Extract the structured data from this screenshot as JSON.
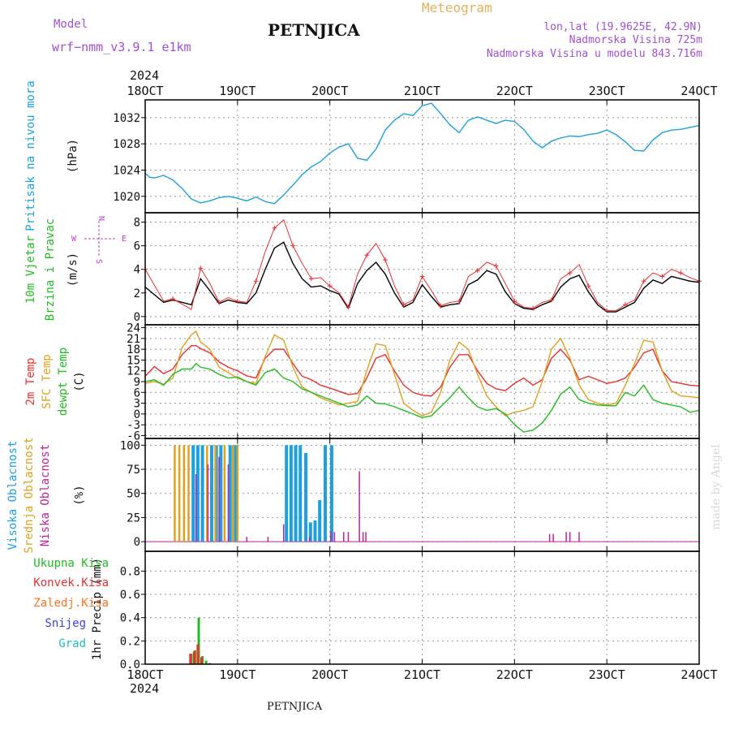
{
  "header": {
    "model_label": "Model",
    "model_name": "wrf−nmm_v3.9.1 e1km",
    "station": "PETNJICA",
    "title": "Meteogram",
    "lonlat": "lon,lat (19.9625E, 42.9N)",
    "elevation": "Nadmorska Visina 725m",
    "model_elevation": "Nadmorska Visina u modelu 843.716m",
    "year_top": "2024",
    "year_bottom": "2024",
    "footer_station": "PETNJICA",
    "credit": "made by Angel"
  },
  "colors": {
    "pressure": "#1ea0e0",
    "wind_label": "#22bb22",
    "wind_speed": "#000000",
    "wind_gust": "#e83030",
    "temp2m": "#e83030",
    "sfc_temp": "#e0a020",
    "dewpoint": "#22bb22",
    "high_cloud": "#1ea0e0",
    "mid_cloud": "#e0a020",
    "low_cloud": "#c020a0",
    "total_precip": "#22bb22",
    "conv_precip": "#e83030",
    "frozen_precip": "#ff7020",
    "snow": "#4040e0",
    "graupel": "#20c0c0",
    "compass": "#c040c0",
    "header_purple": "#a050d0",
    "header_orange": "#e0b060"
  },
  "chart_data": [
    {
      "type": "line",
      "panel": "pressure",
      "ylabel": "Pritisak na nivou mora",
      "units": "(hPa)",
      "x_ticks": [
        "18OCT",
        "19OCT",
        "20OCT",
        "21OCT",
        "22OCT",
        "23OCT",
        "24OCT"
      ],
      "yticks": [
        1020,
        1024,
        1028,
        1032
      ],
      "ylim": [
        1017.5,
        1034.7
      ],
      "grid": true,
      "series": [
        {
          "x": [
            0,
            0.05,
            0.1,
            0.2,
            0.3,
            0.4,
            0.5,
            0.6,
            0.7,
            0.8,
            0.9,
            1.0,
            1.1,
            1.2,
            1.3,
            1.4,
            1.5,
            1.6,
            1.7,
            1.8,
            1.9,
            2.0,
            2.1,
            2.2,
            2.3,
            2.4,
            2.5,
            2.6,
            2.7,
            2.8,
            2.9,
            3.0,
            3.1,
            3.2,
            3.3,
            3.4,
            3.5,
            3.6,
            3.7,
            3.8,
            3.9,
            4.0,
            4.1,
            4.2,
            4.3,
            4.4,
            4.5,
            4.6,
            4.7,
            4.8,
            4.9,
            5.0,
            5.1,
            5.2,
            5.3,
            5.4,
            5.5,
            5.6,
            5.7,
            5.8,
            5.9,
            6.0
          ],
          "values": [
            1023.5,
            1022.9,
            1022.8,
            1023.2,
            1022.5,
            1021.2,
            1019.6,
            1019.0,
            1019.3,
            1019.8,
            1020.0,
            1019.7,
            1019.3,
            1019.9,
            1019.2,
            1018.9,
            1020.2,
            1021.7,
            1023.3,
            1024.5,
            1025.3,
            1026.6,
            1027.5,
            1028.0,
            1025.8,
            1025.5,
            1027.2,
            1030.1,
            1031.6,
            1032.6,
            1032.3,
            1033.8,
            1034.2,
            1032.6,
            1030.9,
            1029.7,
            1031.6,
            1032.1,
            1031.6,
            1031.1,
            1031.6,
            1031.4,
            1030.2,
            1028.4,
            1027.4,
            1028.4,
            1028.9,
            1029.2,
            1029.1,
            1029.4,
            1029.6,
            1030.1,
            1029.4,
            1028.3,
            1027.0,
            1026.9,
            1028.6,
            1029.7,
            1030.1,
            1030.2,
            1030.5,
            1030.8
          ]
        }
      ]
    },
    {
      "type": "line",
      "panel": "wind",
      "ylabel": "10m Vjetar",
      "ylabel2": "Brzina i Pravac",
      "units": "(m/s)",
      "compass_top": "N",
      "compass_left": "W",
      "compass_right": "E",
      "compass_bottom": "S",
      "yticks": [
        0,
        2,
        4,
        6,
        8
      ],
      "ylim": [
        -0.7,
        8.8
      ],
      "grid": true,
      "series": [
        {
          "name": "speed",
          "x": [
            0,
            0.2,
            0.3,
            0.5,
            0.6,
            0.7,
            0.8,
            0.9,
            1.0,
            1.1,
            1.2,
            1.3,
            1.4,
            1.5,
            1.6,
            1.7,
            1.8,
            1.9,
            2.0,
            2.1,
            2.2,
            2.3,
            2.4,
            2.5,
            2.6,
            2.7,
            2.8,
            2.9,
            3.0,
            3.1,
            3.2,
            3.3,
            3.4,
            3.5,
            3.6,
            3.7,
            3.8,
            3.9,
            4.0,
            4.1,
            4.2,
            4.3,
            4.4,
            4.5,
            4.6,
            4.7,
            4.8,
            4.9,
            5.0,
            5.1,
            5.2,
            5.3,
            5.4,
            5.5,
            5.6,
            5.7,
            5.8,
            5.9,
            6.0
          ],
          "values": [
            2.5,
            1.2,
            1.4,
            1.0,
            3.2,
            2.2,
            1.1,
            1.4,
            1.2,
            1.1,
            2.0,
            4.0,
            5.8,
            6.3,
            4.5,
            3.2,
            2.5,
            2.6,
            2.2,
            1.9,
            0.7,
            2.8,
            3.9,
            4.6,
            3.6,
            2.0,
            0.8,
            1.2,
            2.7,
            1.7,
            0.8,
            1.0,
            1.1,
            2.7,
            3.1,
            3.9,
            3.6,
            2.1,
            1.1,
            0.7,
            0.6,
            1.0,
            1.3,
            2.5,
            3.2,
            3.5,
            2.1,
            1.0,
            0.4,
            0.4,
            0.8,
            1.2,
            2.4,
            3.1,
            2.8,
            3.4,
            3.2,
            3.0,
            2.9
          ]
        },
        {
          "name": "gust",
          "x": [
            0,
            0.2,
            0.3,
            0.5,
            0.6,
            0.7,
            0.8,
            0.9,
            1.0,
            1.1,
            1.2,
            1.3,
            1.4,
            1.5,
            1.6,
            1.7,
            1.8,
            1.9,
            2.0,
            2.1,
            2.2,
            2.3,
            2.4,
            2.5,
            2.6,
            2.7,
            2.8,
            2.9,
            3.0,
            3.1,
            3.2,
            3.3,
            3.4,
            3.5,
            3.6,
            3.7,
            3.8,
            3.9,
            4.0,
            4.1,
            4.2,
            4.3,
            4.4,
            4.5,
            4.6,
            4.7,
            4.8,
            4.9,
            5.0,
            5.1,
            5.2,
            5.3,
            5.4,
            5.5,
            5.6,
            5.7,
            5.8,
            5.9,
            6.0
          ],
          "values": [
            4.0,
            1.3,
            1.5,
            0.6,
            4.1,
            2.8,
            1.2,
            1.6,
            1.3,
            1.2,
            3.0,
            5.5,
            7.5,
            8.2,
            6.0,
            4.5,
            3.2,
            3.3,
            2.6,
            2.0,
            0.8,
            3.6,
            5.2,
            6.2,
            4.8,
            2.6,
            1.0,
            1.4,
            3.4,
            2.2,
            0.9,
            1.2,
            1.3,
            3.4,
            3.9,
            4.6,
            4.3,
            2.8,
            1.3,
            0.8,
            0.7,
            1.2,
            1.4,
            3.2,
            3.7,
            4.4,
            2.6,
            1.2,
            0.5,
            0.5,
            1.0,
            1.4,
            3.0,
            3.7,
            3.4,
            4.0,
            3.7,
            3.3,
            3.0
          ]
        }
      ]
    },
    {
      "type": "line",
      "panel": "temperature",
      "ylabel": "2m Temp",
      "ylabel2": "SFC Temp",
      "ylabel3": "dewpt Temp",
      "units": "(C)",
      "yticks": [
        -6,
        -3,
        0,
        3,
        6,
        9,
        12,
        15,
        18,
        21,
        24
      ],
      "ylim": [
        -6.8,
        24.8
      ],
      "grid": true,
      "series": [
        {
          "name": "2m Temp",
          "x": [
            0,
            0.1,
            0.2,
            0.3,
            0.4,
            0.5,
            0.55,
            0.6,
            0.7,
            0.8,
            0.9,
            1.0,
            1.1,
            1.2,
            1.3,
            1.4,
            1.5,
            1.6,
            1.7,
            1.8,
            1.9,
            2.0,
            2.1,
            2.2,
            2.3,
            2.4,
            2.5,
            2.6,
            2.7,
            2.8,
            2.9,
            3.0,
            3.1,
            3.2,
            3.3,
            3.4,
            3.5,
            3.6,
            3.7,
            3.8,
            3.9,
            4.0,
            4.1,
            4.2,
            4.3,
            4.4,
            4.5,
            4.6,
            4.7,
            4.8,
            4.9,
            5.0,
            5.1,
            5.2,
            5.3,
            5.4,
            5.5,
            5.6,
            5.7,
            5.8,
            5.9,
            6.0
          ],
          "values": [
            10.5,
            13.2,
            11.2,
            12.5,
            16.5,
            19.0,
            19.0,
            18.2,
            17.0,
            14.5,
            13.0,
            12.0,
            10.6,
            10.0,
            15.5,
            18.0,
            18.0,
            14.0,
            10.5,
            9.5,
            8.0,
            7.2,
            6.3,
            5.4,
            5.7,
            10.0,
            15.5,
            16.5,
            12.0,
            8.0,
            6.0,
            5.2,
            5.0,
            7.5,
            13.0,
            16.5,
            16.5,
            12.0,
            8.5,
            7.0,
            6.5,
            8.5,
            10.0,
            8.0,
            9.5,
            15.5,
            18.0,
            15.0,
            9.5,
            10.5,
            9.5,
            8.5,
            9.0,
            10.0,
            13.0,
            17.0,
            18.0,
            12.0,
            9.0,
            8.5,
            8.0,
            7.8
          ]
        },
        {
          "name": "SFC Temp",
          "x": [
            0,
            0.1,
            0.2,
            0.3,
            0.4,
            0.5,
            0.55,
            0.6,
            0.7,
            0.8,
            0.9,
            1.0,
            1.1,
            1.2,
            1.3,
            1.4,
            1.5,
            1.6,
            1.7,
            1.8,
            1.9,
            2.0,
            2.1,
            2.2,
            2.3,
            2.4,
            2.5,
            2.6,
            2.7,
            2.8,
            2.9,
            3.0,
            3.1,
            3.2,
            3.3,
            3.4,
            3.5,
            3.6,
            3.7,
            3.8,
            3.9,
            4.0,
            4.1,
            4.2,
            4.3,
            4.4,
            4.5,
            4.6,
            4.7,
            4.8,
            4.9,
            5.0,
            5.1,
            5.2,
            5.3,
            5.4,
            5.5,
            5.6,
            5.7,
            5.8,
            5.9,
            6.0
          ],
          "values": [
            8.5,
            9.0,
            8.3,
            10.0,
            18.5,
            22.0,
            23.0,
            20.0,
            18.0,
            13.0,
            11.5,
            10.0,
            9.0,
            8.5,
            16.0,
            22.0,
            20.5,
            13.0,
            7.5,
            6.0,
            4.5,
            3.5,
            2.5,
            3.0,
            3.5,
            12.0,
            19.5,
            19.0,
            11.0,
            3.0,
            1.0,
            -0.5,
            0.5,
            6.0,
            15.0,
            20.0,
            18.0,
            11.0,
            5.0,
            2.0,
            -0.5,
            0.5,
            1.0,
            2.0,
            9.0,
            18.0,
            21.0,
            15.5,
            8.0,
            4.0,
            3.0,
            2.5,
            3.0,
            8.0,
            14.0,
            20.5,
            20.0,
            12.0,
            6.5,
            5.0,
            4.8,
            4.5
          ]
        },
        {
          "name": "dewpt Temp",
          "x": [
            0,
            0.1,
            0.2,
            0.3,
            0.4,
            0.5,
            0.55,
            0.6,
            0.7,
            0.8,
            0.9,
            1.0,
            1.1,
            1.2,
            1.3,
            1.4,
            1.5,
            1.6,
            1.7,
            1.8,
            1.9,
            2.0,
            2.1,
            2.2,
            2.3,
            2.4,
            2.5,
            2.6,
            2.7,
            2.8,
            2.9,
            3.0,
            3.1,
            3.2,
            3.3,
            3.4,
            3.5,
            3.6,
            3.7,
            3.8,
            3.9,
            4.0,
            4.1,
            4.2,
            4.3,
            4.4,
            4.5,
            4.6,
            4.7,
            4.8,
            4.9,
            5.0,
            5.1,
            5.2,
            5.3,
            5.4,
            5.5,
            5.6,
            5.7,
            5.8,
            5.9,
            6.0
          ],
          "values": [
            9.0,
            9.5,
            8.0,
            11.0,
            12.5,
            12.5,
            14.0,
            13.0,
            12.5,
            11.0,
            10.0,
            10.3,
            9.0,
            8.0,
            11.5,
            12.5,
            10.0,
            9.0,
            7.0,
            6.0,
            5.0,
            4.0,
            3.0,
            2.0,
            2.5,
            5.0,
            3.0,
            2.8,
            2.0,
            1.0,
            0.0,
            -1.0,
            -0.5,
            2.0,
            4.5,
            7.5,
            4.5,
            2.0,
            1.0,
            1.5,
            0.0,
            -3.0,
            -5.0,
            -4.5,
            -2.5,
            1.0,
            5.5,
            7.5,
            4.0,
            3.0,
            2.5,
            2.3,
            2.3,
            6.0,
            5.0,
            8.0,
            4.0,
            3.0,
            2.5,
            2.0,
            0.5,
            1.0
          ]
        }
      ]
    },
    {
      "type": "bar",
      "panel": "cloud",
      "ylabel": "Visoka Oblacnost",
      "ylabel2": "Srednja Oblacnost",
      "ylabel3": "Niska Oblacnost",
      "units": "(%)",
      "yticks": [
        0,
        25,
        50,
        75,
        100
      ],
      "ylim": [
        -10,
        107
      ],
      "grid": true,
      "series": [
        {
          "name": "Visoka Oblacnost",
          "x": [
            0.52,
            0.57,
            0.62,
            0.72,
            0.77,
            0.82,
            0.92,
            0.98,
            1.53,
            1.58,
            1.63,
            1.68,
            1.74,
            1.79,
            1.84,
            1.89,
            1.95,
            2.02
          ],
          "values": [
            100,
            100,
            100,
            100,
            100,
            100,
            100,
            100,
            100,
            100,
            100,
            100,
            92,
            20,
            22,
            43,
            100,
            100
          ]
        },
        {
          "name": "Srednja Oblacnost",
          "x": [
            0.32,
            0.37,
            0.42,
            0.47,
            0.67,
            0.76,
            0.86,
            0.95,
            1.0
          ],
          "values": [
            100,
            100,
            100,
            100,
            100,
            100,
            100,
            100,
            100
          ]
        },
        {
          "name": "Niska Oblacnost",
          "x": [
            0.55,
            0.68,
            0.8,
            0.9,
            1.1,
            1.33,
            1.5,
            1.78,
            2.01,
            2.05,
            2.15,
            2.2,
            2.32,
            2.36,
            2.39,
            4.38,
            4.42,
            4.56,
            4.6,
            4.7
          ],
          "values": [
            70,
            80,
            88,
            80,
            5,
            5,
            18,
            5,
            10,
            10,
            10,
            10,
            73,
            10,
            10,
            8,
            8,
            10,
            10,
            10
          ]
        }
      ]
    },
    {
      "type": "bar",
      "panel": "precip",
      "ylabel": "1hr Precip",
      "units": "(mm)",
      "legend": [
        "Ukupna Kisa",
        "Konvek.Kisa",
        "Zaledj.Kisa",
        "Snijeg",
        "Grad"
      ],
      "yticks": [
        0.0,
        0.2,
        0.4,
        0.6,
        0.8
      ],
      "ylim": [
        0,
        0.97
      ],
      "grid": true,
      "series": [
        {
          "name": "Ukupna Kisa",
          "x": [
            0.5,
            0.54,
            0.58,
            0.62,
            0.66,
            0.7
          ],
          "values": [
            0.09,
            0.12,
            0.4,
            0.07,
            0.03,
            0.01
          ]
        },
        {
          "name": "Konvek.Kisa",
          "x": [
            0.49,
            0.53,
            0.57,
            0.61
          ],
          "values": [
            0.09,
            0.11,
            0.17,
            0.06
          ]
        }
      ]
    }
  ]
}
